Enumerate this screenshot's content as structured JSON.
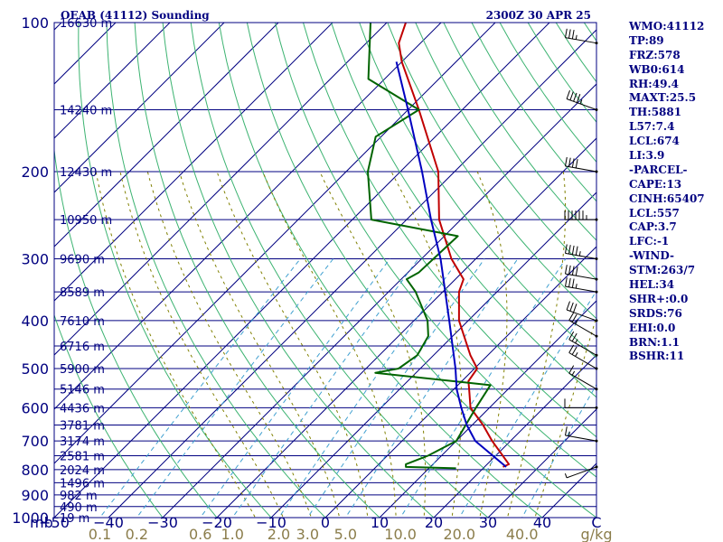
{
  "title_left": "OEAB (41112) Sounding",
  "title_right": "2300Z 30 APR 25",
  "side_panel": [
    "WMO:41112",
    "TP:89",
    "FRZ:578",
    "WB0:614",
    "RH:49.4",
    "MAXT:25.5",
    "TH:5881",
    "L57:7.4",
    "LCL:674",
    "LI:3.9",
    "-PARCEL-",
    "CAPE:13",
    "CINH:65407",
    "LCL:557",
    "CAP:3.7",
    "LFC:-1",
    "-WIND-",
    "STM:263/7",
    "HEL:34",
    "SHR+:0.0",
    "SRDS:76",
    "EHI:0.0",
    "BRN:1.1",
    "BSHR:11"
  ],
  "colors": {
    "frame": "#000080",
    "isobar": "#000080",
    "isotherm": "#000080",
    "dry_adiabat": "#3cb371",
    "moist_adiabat": "#808000",
    "mixing_ratio": "#40a0d0",
    "temperature": "#c00000",
    "dewpoint": "#006400",
    "parcel": "#0000c0",
    "wind_barb": "#000000"
  },
  "chart_data": {
    "type": "skew-t",
    "y_axis_unit": "mb",
    "x_axis_unit": "°C",
    "mixing_ratio_unit": "g/kg",
    "ylim": [
      1000,
      100
    ],
    "xlim": [
      -50,
      50
    ],
    "pressure_ticks": [
      "100",
      "200",
      "300",
      "400",
      "500",
      "600",
      "700",
      "800",
      "900",
      "1000"
    ],
    "pressure_tick_values": [
      100,
      200,
      300,
      400,
      500,
      600,
      700,
      800,
      900,
      1000
    ],
    "height_labels": [
      {
        "text": "16630 m",
        "p": 100
      },
      {
        "text": "14240 m",
        "p": 150
      },
      {
        "text": "12430 m",
        "p": 200
      },
      {
        "text": "10950 m",
        "p": 250
      },
      {
        "text": "9690 m",
        "p": 300
      },
      {
        "text": "8589 m",
        "p": 350
      },
      {
        "text": "7610 m",
        "p": 400
      },
      {
        "text": "6716 m",
        "p": 450
      },
      {
        "text": "5900 m",
        "p": 500
      },
      {
        "text": "5146 m",
        "p": 550
      },
      {
        "text": "4436 m",
        "p": 600
      },
      {
        "text": "3781 m",
        "p": 650
      },
      {
        "text": "3174 m",
        "p": 700
      },
      {
        "text": "2581 m",
        "p": 750
      },
      {
        "text": "2024 m",
        "p": 800
      },
      {
        "text": "1496 m",
        "p": 850
      },
      {
        "text": "982 m",
        "p": 900
      },
      {
        "text": "490 m",
        "p": 950
      },
      {
        "text": "19 m",
        "p": 1000
      }
    ],
    "temperature_ticks": [
      "−50",
      "−40",
      "−30",
      "−20",
      "−10",
      "0",
      "10",
      "20",
      "30",
      "40",
      "C"
    ],
    "temperature_tick_values": [
      -50,
      -40,
      -30,
      -20,
      -10,
      0,
      10,
      20,
      30,
      40,
      50
    ],
    "mixing_ratio_ticks": [
      "0.1",
      "0.2",
      "0.6",
      "1.0",
      "2.0",
      "3.0",
      "5.0",
      "10.0",
      "20.0",
      "40.0",
      "g/kg"
    ],
    "mixing_ratio_values": [
      0.1,
      0.2,
      0.6,
      1.0,
      2.0,
      3.0,
      5.0,
      10.0,
      20.0,
      40.0
    ],
    "series": [
      {
        "key": "temperature",
        "points": [
          {
            "p": 790,
            "t": 23.4
          },
          {
            "p": 780,
            "t": 24.0
          },
          {
            "p": 700,
            "t": 16.6
          },
          {
            "p": 650,
            "t": 12.0
          },
          {
            "p": 600,
            "t": 6.5
          },
          {
            "p": 550,
            "t": 2.8
          },
          {
            "p": 530,
            "t": 1.2
          },
          {
            "p": 500,
            "t": 0.5
          },
          {
            "p": 470,
            "t": -3.2
          },
          {
            "p": 430,
            "t": -7.9
          },
          {
            "p": 400,
            "t": -11.7
          },
          {
            "p": 350,
            "t": -17.0
          },
          {
            "p": 330,
            "t": -18.5
          },
          {
            "p": 300,
            "t": -24.5
          },
          {
            "p": 250,
            "t": -34.0
          },
          {
            "p": 200,
            "t": -43.0
          },
          {
            "p": 150,
            "t": -58.0
          },
          {
            "p": 120,
            "t": -70.0
          },
          {
            "p": 110,
            "t": -74.0
          },
          {
            "p": 100,
            "t": -76.5
          }
        ]
      },
      {
        "key": "dewpoint",
        "points": [
          {
            "p": 795,
            "t": 15.0
          },
          {
            "p": 790,
            "t": 5.5
          },
          {
            "p": 780,
            "t": 5.0
          },
          {
            "p": 750,
            "t": 7.5
          },
          {
            "p": 700,
            "t": 10.0
          },
          {
            "p": 600,
            "t": 7.5
          },
          {
            "p": 540,
            "t": 6.0
          },
          {
            "p": 510,
            "t": -17.5
          },
          {
            "p": 500,
            "t": -14.0
          },
          {
            "p": 470,
            "t": -13.0
          },
          {
            "p": 430,
            "t": -14.5
          },
          {
            "p": 400,
            "t": -17.5
          },
          {
            "p": 350,
            "t": -25.0
          },
          {
            "p": 330,
            "t": -29.0
          },
          {
            "p": 320,
            "t": -28.0
          },
          {
            "p": 270,
            "t": -27.5
          },
          {
            "p": 250,
            "t": -46.5
          },
          {
            "p": 200,
            "t": -56.0
          },
          {
            "p": 170,
            "t": -61.0
          },
          {
            "p": 150,
            "t": -58.0
          },
          {
            "p": 130,
            "t": -73.0
          },
          {
            "p": 100,
            "t": -83.0
          }
        ]
      },
      {
        "key": "parcel",
        "points": [
          {
            "p": 790,
            "t": 24.0
          },
          {
            "p": 700,
            "t": 13.5
          },
          {
            "p": 650,
            "t": 9.0
          },
          {
            "p": 600,
            "t": 4.8
          },
          {
            "p": 550,
            "t": 0.5
          },
          {
            "p": 500,
            "t": -3.5
          },
          {
            "p": 400,
            "t": -13.5
          },
          {
            "p": 300,
            "t": -26.5
          },
          {
            "p": 250,
            "t": -35.5
          },
          {
            "p": 200,
            "t": -46.0
          },
          {
            "p": 150,
            "t": -60.0
          },
          {
            "p": 120,
            "t": -71.0
          }
        ]
      }
    ],
    "wind_barbs": [
      {
        "p": 790,
        "dir": 250,
        "spd": 5
      },
      {
        "p": 700,
        "dir": 280,
        "spd": 15
      },
      {
        "p": 600,
        "dir": 270,
        "spd": 10
      },
      {
        "p": 550,
        "dir": 300,
        "spd": 15
      },
      {
        "p": 500,
        "dir": 300,
        "spd": 25
      },
      {
        "p": 470,
        "dir": 300,
        "spd": 25
      },
      {
        "p": 430,
        "dir": 300,
        "spd": 25
      },
      {
        "p": 400,
        "dir": 290,
        "spd": 30
      },
      {
        "p": 350,
        "dir": 280,
        "spd": 35
      },
      {
        "p": 330,
        "dir": 280,
        "spd": 40
      },
      {
        "p": 300,
        "dir": 280,
        "spd": 45
      },
      {
        "p": 250,
        "dir": 270,
        "spd": 65
      },
      {
        "p": 200,
        "dir": 280,
        "spd": 40
      },
      {
        "p": 150,
        "dir": 290,
        "spd": 45
      },
      {
        "p": 110,
        "dir": 280,
        "spd": 35
      }
    ]
  }
}
